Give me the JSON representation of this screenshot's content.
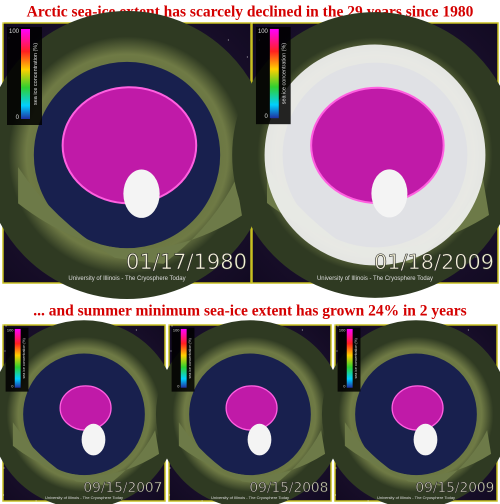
{
  "header": {
    "title": "Arctic sea-ice extent has scarcely declined in the 29 years since 1980"
  },
  "top_panels": [
    {
      "date": "01/17/1980",
      "credit": "University of Illinois - The Cryosphere Today",
      "colorbar_label": "sea ice concentration (%)",
      "colorbar_ticks": [
        "100",
        "0"
      ]
    },
    {
      "date": "01/18/2009",
      "credit": "University of Illinois - The Cryosphere Today",
      "colorbar_label": "sea ice concentration (%)",
      "colorbar_ticks": [
        "100",
        "0"
      ]
    }
  ],
  "subheader": {
    "title": "... and summer minimum sea-ice extent has grown 24% in 2 years"
  },
  "bottom_panels": [
    {
      "date": "09/15/2007",
      "credit": "University of Illinois - The Cryosphere Today",
      "colorbar_label": "sea ice concentration (%)",
      "colorbar_ticks": [
        "100",
        "0"
      ]
    },
    {
      "date": "09/15/2008",
      "credit": "University of Illinois - The Cryosphere Today",
      "colorbar_label": "sea ice concentration (%)",
      "colorbar_ticks": [
        "100",
        "0"
      ]
    },
    {
      "date": "09/15/2009",
      "credit": "University of Illinois - The Cryosphere Today",
      "colorbar_label": "sea ice concentration (%)",
      "colorbar_ticks": [
        "100",
        "0"
      ]
    }
  ]
}
